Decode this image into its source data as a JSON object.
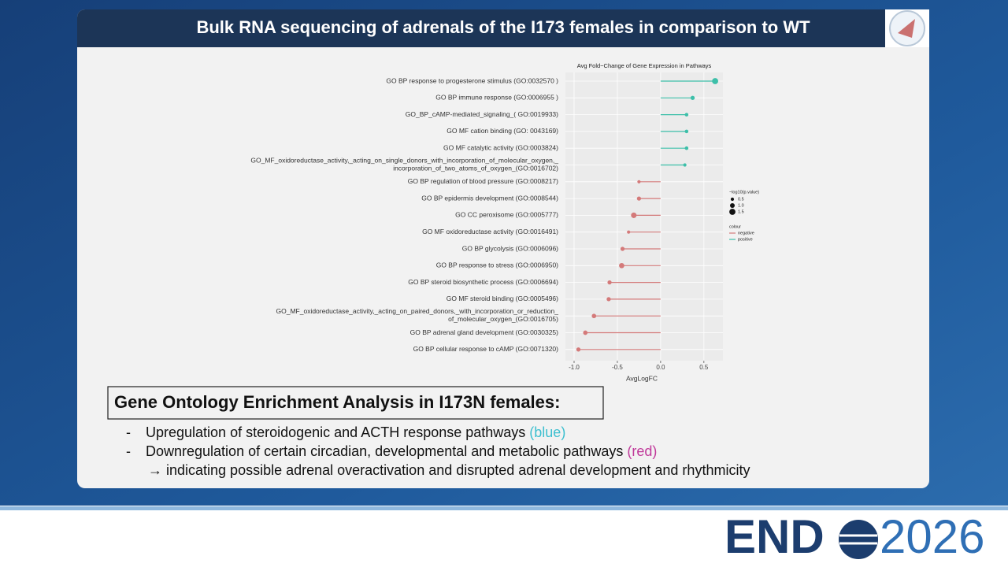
{
  "slide": {
    "title": "Bulk RNA sequencing of adrenals of the I173 females in comparison to WT",
    "box_heading": "Gene Ontology Enrichment Analysis in I173N females:",
    "bullets": [
      {
        "marker": "-",
        "text": "Upregulation of steroidogenic and ACTH response pathways ",
        "highlight": "(blue)",
        "highlight_color": "#3cbfcf"
      },
      {
        "marker": "-",
        "text": "Downregulation of certain circadian, developmental and metabolic pathways ",
        "highlight": "(red)",
        "highlight_color": "#c0399a"
      }
    ],
    "conclusion": "→ indicating possible adrenal overactivation and disrupted adrenal development and rhythmicity",
    "logo": {
      "left": "END",
      "right": "2026"
    }
  },
  "chart_data": {
    "type": "lollipop",
    "title": "Avg Fold−Change of Gene Expression in Pathways",
    "xlabel": "AvgLogFC",
    "categories": [
      "GO BP response to progesterone stimulus (GO:0032570 )",
      "GO BP immune response (GO:0006955 )",
      "GO_BP_cAMP-mediated_signaling_( GO:0019933)",
      "GO MF cation binding (GO: 0043169)",
      "GO MF catalytic activity (GO:0003824)",
      "GO_MF_oxidoreductase_activity,_acting_on_single_donors_with_incorporation_of_molecular_oxygen,_\nincorporation_of_two_atoms_of_oxygen_(GO:0016702)",
      "GO BP regulation of blood pressure (GO:0008217)",
      "GO BP epidermis development (GO:0008544)",
      "GO CC peroxisome (GO:0005777)",
      "GO MF oxidoreductase activity (GO:0016491)",
      "GO BP glycolysis (GO:0006096)",
      "GO BP response to stress (GO:0006950)",
      "GO BP steroid biosynthetic process (GO:0006694)",
      "GO MF steroid binding (GO:0005496)",
      "GO_MF_oxidoreductase_activity,_acting_on_paired_donors,_with_incorporation_or_reduction_\nof_molecular_oxygen_(GO:0016705)",
      "GO BP adrenal gland development (GO:0030325)",
      "GO BP cellular response to cAMP (GO:0071320)"
    ],
    "series": [
      {
        "name": "negative",
        "color": "#d47a7a",
        "values": [
          null,
          null,
          null,
          null,
          null,
          null,
          -0.25,
          -0.25,
          -0.31,
          -0.37,
          -0.44,
          -0.45,
          -0.59,
          -0.6,
          -0.77,
          -0.87,
          -0.95
        ]
      },
      {
        "name": "positive",
        "color": "#3dbfa9",
        "values": [
          0.63,
          0.37,
          0.3,
          0.3,
          0.3,
          0.28,
          null,
          null,
          null,
          null,
          null,
          null,
          null,
          null,
          null,
          null,
          null
        ]
      }
    ],
    "sizes": [
      1.5,
      0.8,
      0.6,
      0.6,
      0.6,
      0.5,
      0.5,
      0.8,
      1.3,
      0.5,
      0.8,
      1.2,
      0.8,
      0.8,
      0.9,
      0.9,
      0.8
    ],
    "size_legend": {
      "title": "−log10(p.value)",
      "values": [
        0.5,
        {
          "value": 1,
          "label": "1.0"
        },
        1.5
      ]
    },
    "color_legend_title": "colour",
    "xlim": [
      -1.1,
      0.72
    ],
    "xticks": [
      {
        "value": -1,
        "label": "-1.0"
      },
      -0.5,
      {
        "value": 0,
        "label": "0.0"
      },
      0.5
    ],
    "grid": true
  }
}
